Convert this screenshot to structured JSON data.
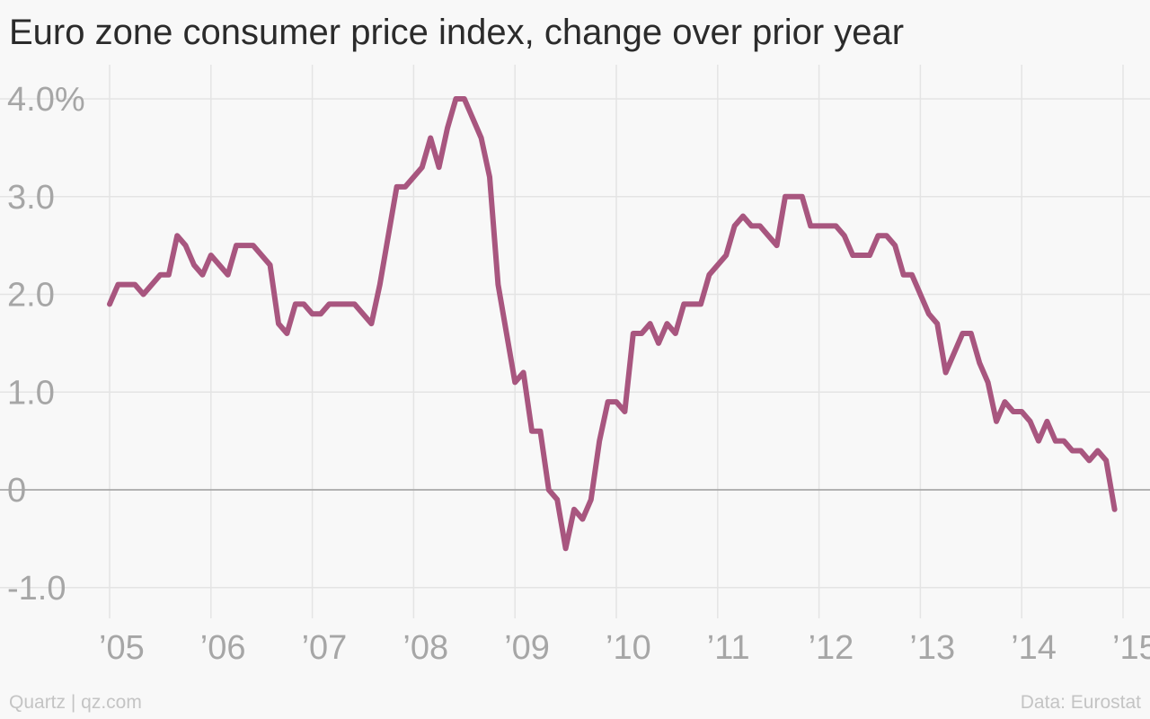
{
  "header": {
    "title": "Euro zone consumer price index, change over prior year"
  },
  "footer": {
    "source_left": "Quartz | qz.com",
    "source_right": "Data: Eurostat"
  },
  "colors": {
    "line": "#a8567f",
    "grid": "#e4e4e4",
    "zero_line": "#a8a8a8",
    "background": "#f8f8f8"
  },
  "chart_data": {
    "type": "line",
    "title": "Euro zone consumer price index, change over prior year",
    "xlabel": "",
    "ylabel": "",
    "unit": "%",
    "x_start": "2005-01",
    "x_end": "2015-01",
    "xlim": [
      "2005-01",
      "2015-01"
    ],
    "ylim": [
      -1.2,
      4.2
    ],
    "grid": true,
    "legend": "none",
    "x_ticks": [
      {
        "label": "’05",
        "date": "2005-01"
      },
      {
        "label": "’06",
        "date": "2006-01"
      },
      {
        "label": "’07",
        "date": "2007-01"
      },
      {
        "label": "’08",
        "date": "2008-01"
      },
      {
        "label": "’09",
        "date": "2009-01"
      },
      {
        "label": "’10",
        "date": "2010-01"
      },
      {
        "label": "’11",
        "date": "2011-01"
      },
      {
        "label": "’12",
        "date": "2012-01"
      },
      {
        "label": "’13",
        "date": "2013-01"
      },
      {
        "label": "’14",
        "date": "2014-01"
      },
      {
        "label": "’15",
        "date": "2015-01"
      }
    ],
    "y_ticks": [
      {
        "label": "4.0%",
        "value": 4
      },
      {
        "label": "3.0",
        "value": 3
      },
      {
        "label": "2.0",
        "value": 2
      },
      {
        "label": "1.0",
        "value": 1
      },
      {
        "label": "0",
        "value": 0
      },
      {
        "label": "-1.0",
        "value": -1
      }
    ],
    "series": [
      {
        "values": [
          1.9,
          2.1,
          2.1,
          2.1,
          2.0,
          2.1,
          2.2,
          2.2,
          2.6,
          2.5,
          2.3,
          2.2,
          2.4,
          2.3,
          2.2,
          2.5,
          2.5,
          2.5,
          2.4,
          2.3,
          1.7,
          1.6,
          1.9,
          1.9,
          1.8,
          1.8,
          1.9,
          1.9,
          1.9,
          1.9,
          1.8,
          1.7,
          2.1,
          2.6,
          3.1,
          3.1,
          3.2,
          3.3,
          3.6,
          3.3,
          3.7,
          4.0,
          4.0,
          3.8,
          3.6,
          3.2,
          2.1,
          1.6,
          1.1,
          1.2,
          0.6,
          0.6,
          0.0,
          -0.1,
          -0.6,
          -0.2,
          -0.3,
          -0.1,
          0.5,
          0.9,
          0.9,
          0.8,
          1.6,
          1.6,
          1.7,
          1.5,
          1.7,
          1.6,
          1.9,
          1.9,
          1.9,
          2.2,
          2.3,
          2.4,
          2.7,
          2.8,
          2.7,
          2.7,
          2.6,
          2.5,
          3.0,
          3.0,
          3.0,
          2.7,
          2.7,
          2.7,
          2.7,
          2.6,
          2.4,
          2.4,
          2.4,
          2.6,
          2.6,
          2.5,
          2.2,
          2.2,
          2.0,
          1.8,
          1.7,
          1.2,
          1.4,
          1.6,
          1.6,
          1.3,
          1.1,
          0.7,
          0.9,
          0.8,
          0.8,
          0.7,
          0.5,
          0.7,
          0.5,
          0.5,
          0.4,
          0.4,
          0.3,
          0.4,
          0.3,
          -0.2
        ]
      }
    ]
  }
}
